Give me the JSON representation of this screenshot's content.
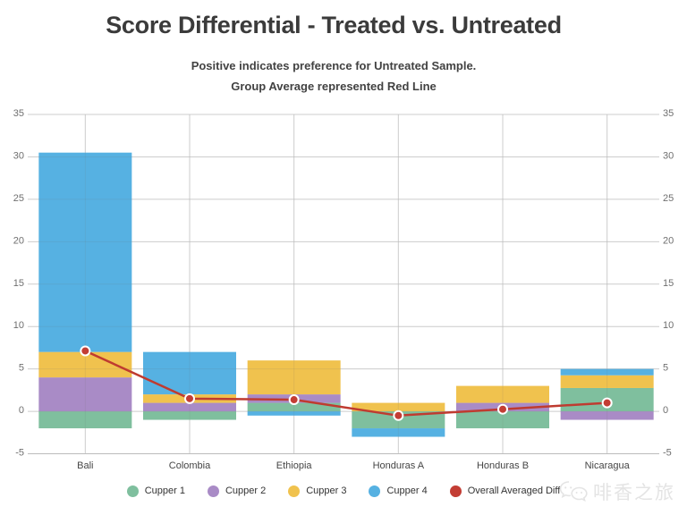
{
  "header": {
    "title": "Score Differential - Treated vs. Untreated",
    "subtitle_line1": "Positive indicates preference for Untreated Sample.",
    "subtitle_line2": "Group Average represented Red Line"
  },
  "chart_data": {
    "type": "bar",
    "variant": "stacked-bars-with-average-line",
    "title": "Score Differential - Treated vs. Untreated",
    "categories": [
      "Bali",
      "Colombia",
      "Ethiopia",
      "Honduras A",
      "Honduras B",
      "Nicaragua"
    ],
    "series": [
      {
        "name": "Cupper 1",
        "color": "#7fbf9e",
        "values": [
          -2,
          -1,
          1,
          -2,
          -2,
          2.75
        ]
      },
      {
        "name": "Cupper 2",
        "color": "#a98bc6",
        "values": [
          4,
          1,
          1,
          0,
          1,
          -1
        ]
      },
      {
        "name": "Cupper 3",
        "color": "#f0c24e",
        "values": [
          3,
          1,
          4,
          1,
          2,
          1.5
        ]
      },
      {
        "name": "Cupper 4",
        "color": "#56b1e2",
        "values": [
          23.5,
          5,
          -0.5,
          -1,
          0,
          0.75
        ]
      }
    ],
    "line_series": {
      "name": "Overall Averaged Diff",
      "color": "#bf3b30",
      "dot_color": "#c33d34",
      "values": [
        7.125,
        1.5,
        1.375,
        -0.5,
        0.25,
        1.0
      ]
    },
    "ylim": [
      -5,
      35
    ],
    "yticks": [
      35,
      30,
      25,
      20,
      15,
      10,
      5,
      0,
      -5
    ],
    "y_axis_both_sides": true,
    "grid": true,
    "legend_position": "bottom",
    "xlabel": "",
    "ylabel": ""
  },
  "watermark": {
    "text": "啡香之旅",
    "icon": "chat-bubbles-icon"
  },
  "colors": {
    "background": "#ffffff",
    "grid": "#dcdcdc",
    "baseline": "#c9c9c9",
    "axis_text": "#6f6f6f",
    "category_text": "#454545",
    "title_text": "#3b3b3b",
    "subtitle_text": "#424242",
    "legend_text": "#333333",
    "watermark": "#e4e4e4"
  }
}
